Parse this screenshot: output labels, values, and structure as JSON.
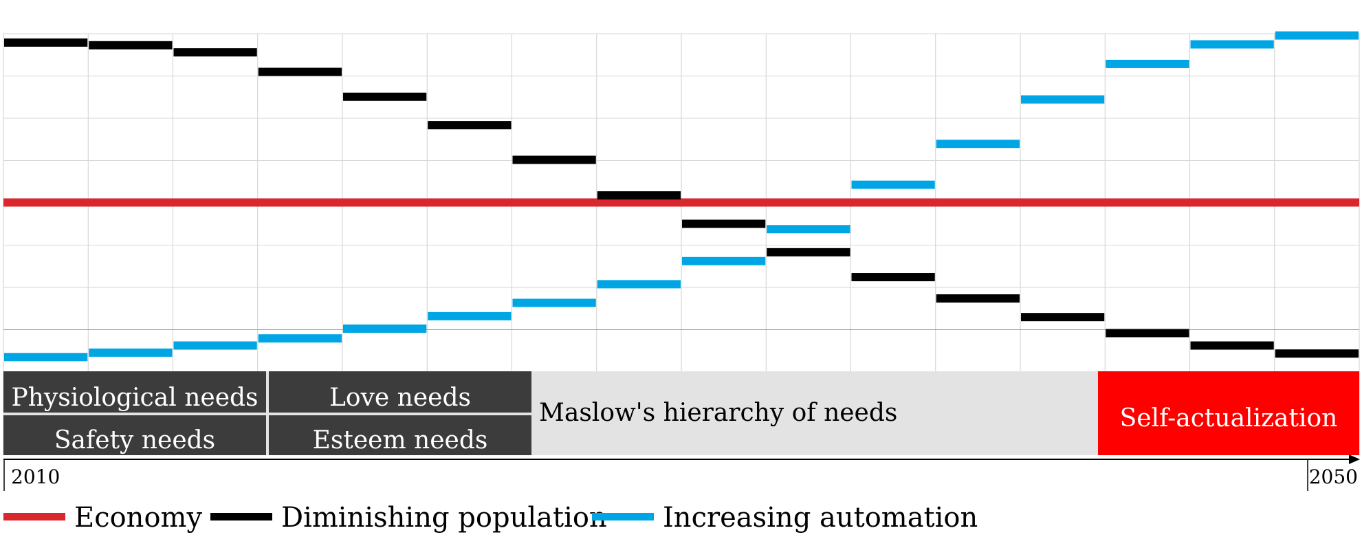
{
  "chart_data": {
    "type": "step",
    "x_axis": {
      "start_label": "2010",
      "end_label": "2050",
      "periods": 16
    },
    "y_range": [
      0,
      38
    ],
    "grid": true,
    "series": [
      {
        "name": "Economy",
        "color": "#d9272e",
        "kind": "flat",
        "value": 19
      },
      {
        "name": "Diminishing population",
        "color": "#000000",
        "kind": "step",
        "values": [
          37,
          36.7,
          35.9,
          33.7,
          30.9,
          27.7,
          23.8,
          19.8,
          16.6,
          13.4,
          10.6,
          8.2,
          6.1,
          4.3,
          2.9,
          2.0
        ]
      },
      {
        "name": "Increasing automation",
        "color": "#00a6e4",
        "kind": "step",
        "values": [
          1.6,
          2.1,
          2.9,
          3.7,
          4.8,
          6.2,
          7.7,
          9.8,
          12.4,
          16.0,
          21.0,
          25.6,
          30.6,
          34.6,
          36.8,
          37.8
        ]
      }
    ],
    "stages": {
      "left_grid": [
        "Physiological needs",
        "Love needs",
        "Safety needs",
        "Esteem needs"
      ],
      "middle": "Maslow's hierarchy of needs",
      "right": "Self-actualization"
    },
    "legend": {
      "placement": "bottom-left"
    }
  }
}
